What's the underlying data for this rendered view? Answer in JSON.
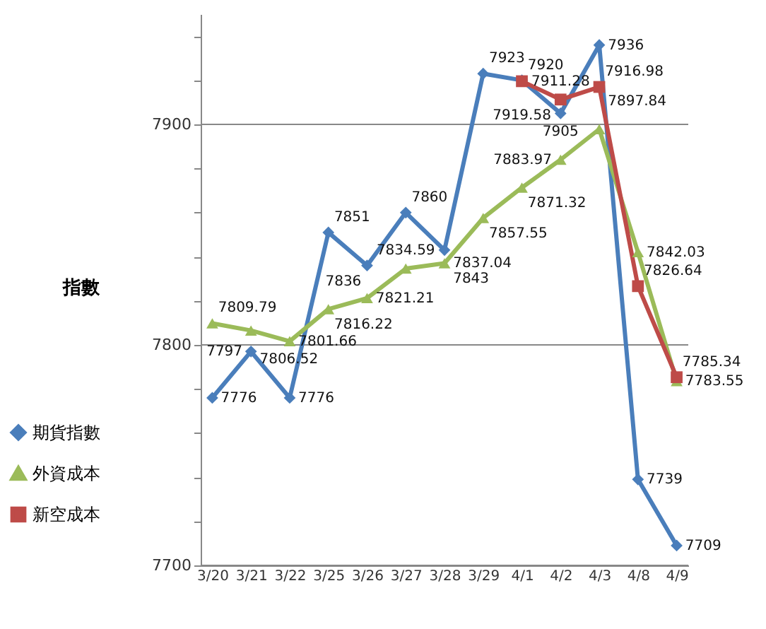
{
  "chart_data": {
    "type": "line",
    "ylabel": "指數",
    "categories": [
      "3/20",
      "3/21",
      "3/22",
      "3/25",
      "3/26",
      "3/27",
      "3/28",
      "3/29",
      "4/1",
      "4/2",
      "4/3",
      "4/8",
      "4/9"
    ],
    "series": [
      {
        "name": "期貨指數",
        "color": "#4a7ebb",
        "marker": "diamond",
        "values": [
          7776,
          7797,
          7776,
          7851,
          7836,
          7860,
          7843,
          7923,
          7920,
          7905,
          7936,
          7739,
          7709
        ]
      },
      {
        "name": "外資成本",
        "color": "#9bbb59",
        "marker": "triangle",
        "values": [
          7809.79,
          7806.52,
          7801.66,
          7816.22,
          7821.21,
          7834.59,
          7837.04,
          7857.55,
          7871.32,
          7883.97,
          7897.84,
          7842.03,
          7783.55
        ]
      },
      {
        "name": "新空成本",
        "color": "#be4b48",
        "marker": "square",
        "values": [
          null,
          null,
          null,
          null,
          null,
          null,
          null,
          null,
          7919.58,
          7911.28,
          7916.98,
          7826.64,
          7785.34
        ]
      }
    ],
    "ylim": [
      7700,
      7950
    ],
    "yticks": [
      7700,
      {
        "value": 7720,
        "label": null
      },
      {
        "value": 7740,
        "label": null
      },
      {
        "value": 7760,
        "label": null
      },
      {
        "value": 7780,
        "label": null
      },
      7800,
      {
        "value": 7820,
        "label": null
      },
      {
        "value": 7840,
        "label": null
      },
      {
        "value": 7860,
        "label": null
      },
      {
        "value": 7880,
        "label": null
      },
      7900,
      {
        "value": 7920,
        "label": null
      },
      {
        "value": 7940,
        "label": null
      }
    ],
    "grid": "y",
    "legend": "left",
    "data_labels": true,
    "line_style": "solid"
  }
}
